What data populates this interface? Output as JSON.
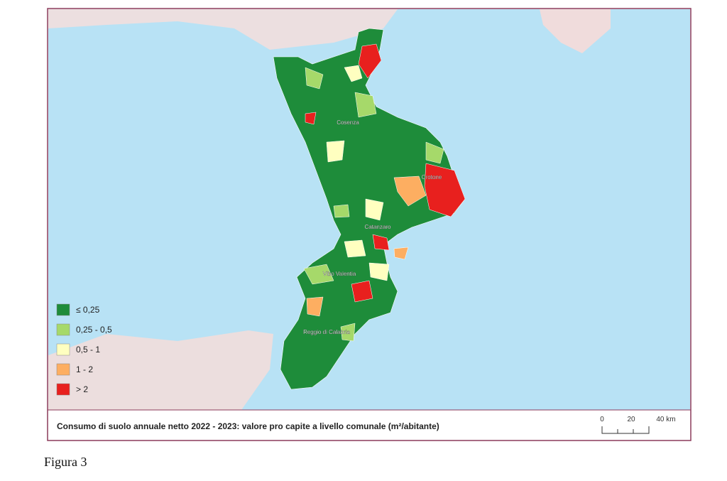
{
  "map": {
    "labels": [
      "Cosenza",
      "Crotone",
      "Catanzaro",
      "Vibo Valentia",
      "Reggio di Calabria"
    ]
  },
  "legend": {
    "items": [
      {
        "label": "≤ 0,25",
        "color": "#1e8c3a"
      },
      {
        "label": "0,25 - 0,5",
        "color": "#a6d96a"
      },
      {
        "label": "0,5 - 1",
        "color": "#ffffc0"
      },
      {
        "label": "1 - 2",
        "color": "#fdae61"
      },
      {
        "label": "> 2",
        "color": "#e8201e"
      }
    ]
  },
  "caption": "Consumo di suolo annuale netto 2022 - 2023: valore pro capite a livello comunale (m²/abitante)",
  "scale": {
    "labels": [
      "0",
      "20",
      "40 km"
    ]
  },
  "figure_label": "Figura 3"
}
